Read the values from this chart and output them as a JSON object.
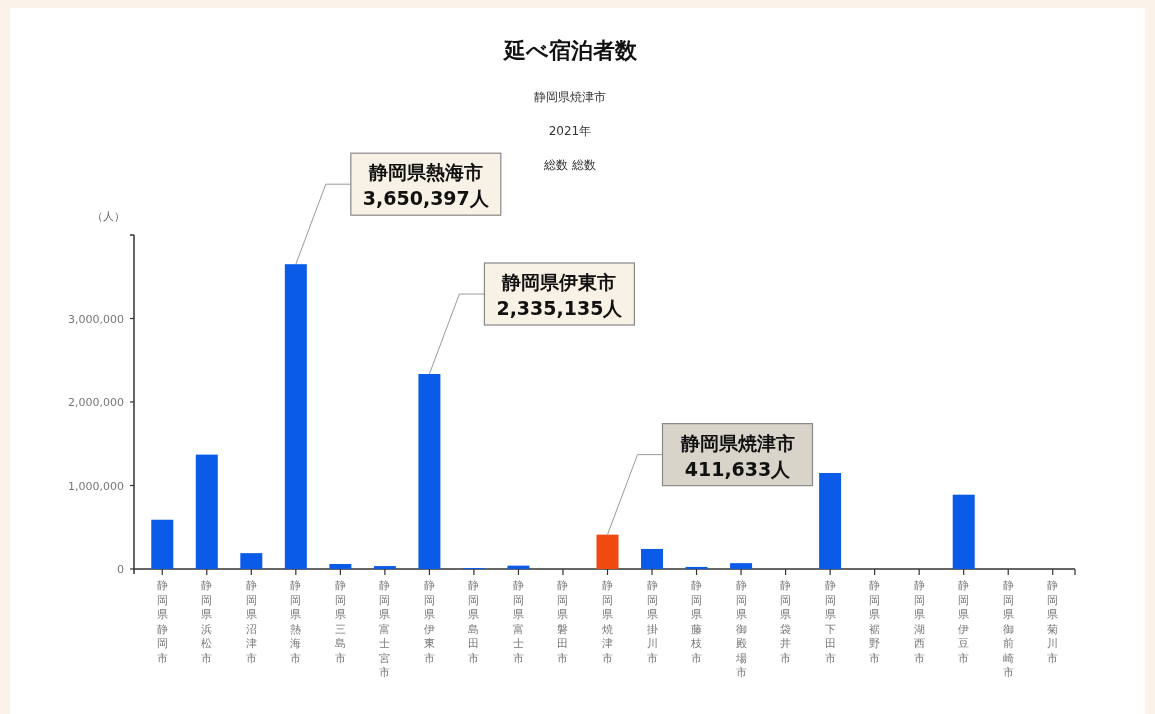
{
  "chart_data": {
    "type": "bar",
    "title": "延べ宿泊者数",
    "subtitle": "静岡県焼津市",
    "ylabel": "（人）",
    "categories": [
      "静岡県静岡市",
      "静岡県浜松市",
      "静岡県沼津市",
      "静岡県熱海市",
      "静岡県三島市",
      "静岡県富士宮市",
      "静岡県伊東市",
      "静岡県島田市",
      "静岡県富士市",
      "静岡県磐田市",
      "静岡県焼津市",
      "静岡県掛川市",
      "静岡県藤枝市",
      "静岡県御殿場市",
      "静岡県袋井市",
      "静岡県下田市",
      "静岡県裾野市",
      "静岡県湖西市",
      "静岡県伊豆市",
      "静岡県御前崎市",
      "静岡県菊川市"
    ],
    "values": [
      590000,
      1370000,
      190000,
      3650397,
      60000,
      35000,
      2335135,
      12000,
      40000,
      0,
      411633,
      240000,
      25000,
      70000,
      0,
      1150000,
      0,
      0,
      890000,
      0,
      0
    ],
    "colors": [
      "#0a5ce8",
      "#0a5ce8",
      "#0a5ce8",
      "#0a5ce8",
      "#0a5ce8",
      "#0a5ce8",
      "#0a5ce8",
      "#0a5ce8",
      "#0a5ce8",
      "#0a5ce8",
      "#f04a10",
      "#0a5ce8",
      "#0a5ce8",
      "#0a5ce8",
      "#0a5ce8",
      "#0a5ce8",
      "#0a5ce8",
      "#0a5ce8",
      "#0a5ce8",
      "#0a5ce8",
      "#0a5ce8"
    ],
    "ylim": [
      0,
      4000000
    ],
    "yticks": [
      {
        "value": 0,
        "label": "0"
      },
      {
        "value": 1000000,
        "label": "1,000,000"
      },
      {
        "value": 2000000,
        "label": "2,000,000"
      },
      {
        "value": 3000000,
        "label": "3,000,000"
      }
    ],
    "grid": false,
    "annotations": [
      "2021年",
      "総数 総数",
      {
        "text": "静岡県熱海市\n3,650,397人",
        "x": "静岡県熱海市",
        "y": 3650397
      },
      {
        "text": "静岡県伊東市\n2,335,135人",
        "x": "静岡県伊東市",
        "y": 2335135
      },
      {
        "text": "静岡県焼津市\n411,633人",
        "x": "静岡県焼津市",
        "y": 411633
      }
    ]
  }
}
